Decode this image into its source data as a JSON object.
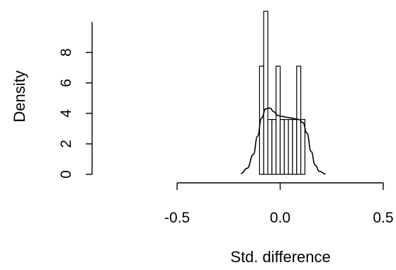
{
  "chart_data": {
    "type": "histogram",
    "title": "",
    "xlabel": "Std. difference",
    "ylabel": "Density",
    "xlim": [
      -0.5,
      0.5
    ],
    "ylim": [
      0,
      10.5
    ],
    "x_ticks": [
      {
        "value": -0.5,
        "label": "-0.5"
      },
      {
        "value": 0.0,
        "label": "0.0"
      },
      {
        "value": 0.5,
        "label": "0.5"
      }
    ],
    "y_ticks": [
      {
        "value": 0,
        "label": "0"
      },
      {
        "value": 2,
        "label": "2"
      },
      {
        "value": 4,
        "label": "4"
      },
      {
        "value": 6,
        "label": "6"
      },
      {
        "value": 8,
        "label": "8"
      }
    ],
    "bins": [
      {
        "x0": -0.1,
        "x1": -0.08,
        "density": 7.1
      },
      {
        "x0": -0.08,
        "x1": -0.06,
        "density": 10.7
      },
      {
        "x0": -0.06,
        "x1": -0.04,
        "density": 3.6
      },
      {
        "x0": -0.04,
        "x1": -0.02,
        "density": 3.6
      },
      {
        "x0": -0.02,
        "x1": 0.0,
        "density": 7.1
      },
      {
        "x0": 0.0,
        "x1": 0.02,
        "density": 3.6
      },
      {
        "x0": 0.02,
        "x1": 0.04,
        "density": 3.6
      },
      {
        "x0": 0.04,
        "x1": 0.06,
        "density": 3.6
      },
      {
        "x0": 0.06,
        "x1": 0.08,
        "density": 3.6
      },
      {
        "x0": 0.08,
        "x1": 0.1,
        "density": 7.1
      },
      {
        "x0": 0.1,
        "x1": 0.12,
        "density": 3.6
      }
    ],
    "density_curve": {
      "x": [
        -0.19,
        -0.16,
        -0.13,
        -0.11,
        -0.09,
        -0.07,
        -0.05,
        -0.03,
        -0.01,
        0.01,
        0.03,
        0.05,
        0.07,
        0.09,
        0.11,
        0.13,
        0.15,
        0.17,
        0.19,
        0.22
      ],
      "y": [
        0.05,
        0.4,
        1.3,
        2.5,
        3.7,
        4.3,
        4.35,
        4.1,
        3.85,
        3.8,
        3.75,
        3.7,
        3.65,
        3.6,
        3.4,
        2.7,
        1.5,
        0.6,
        0.2,
        0.02
      ]
    },
    "colors": {
      "stroke": "#000000",
      "fill": "#ffffff"
    }
  }
}
